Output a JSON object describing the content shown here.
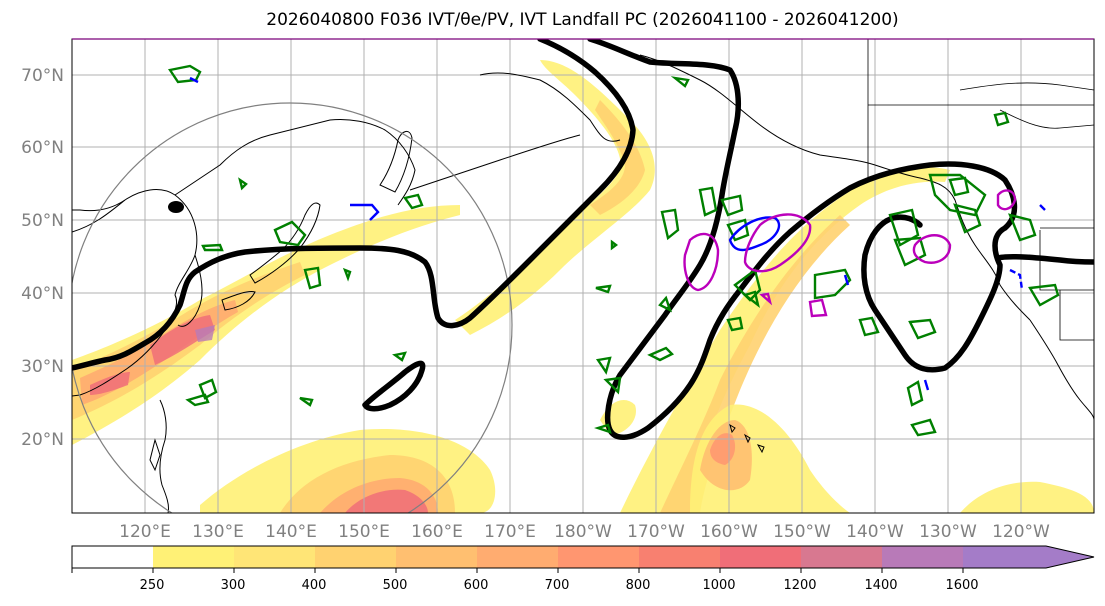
{
  "title": "2026040800 F036 IVT/θe/PV, IVT Landfall PC (2026041100 - 2026041200)",
  "map": {
    "lat_labels": [
      "70°N",
      "60°N",
      "50°N",
      "40°N",
      "30°N",
      "20°N"
    ],
    "lon_labels": [
      "120°E",
      "130°E",
      "140°E",
      "150°E",
      "160°E",
      "170°E",
      "180°W",
      "170°W",
      "160°W",
      "150°W",
      "140°W",
      "130°W",
      "120°W"
    ],
    "extent": {
      "lon_min": 110,
      "lon_max": 250,
      "lat_min": 10,
      "lat_max": 75
    },
    "colors": {
      "coastline": "#000000",
      "gridline": "#b0b0b0",
      "contour_thick": "#000000",
      "contour_green": "#008000",
      "contour_blue": "#0000ff",
      "contour_magenta": "#bb00bb",
      "circle": "#808080"
    }
  },
  "colorbar": {
    "levels": [
      "250",
      "300",
      "400",
      "500",
      "600",
      "700",
      "800",
      "1000",
      "1200",
      "1400",
      "1600"
    ],
    "colors": [
      "#ffffff",
      "#fff176",
      "#ffe576",
      "#ffd270",
      "#ffbf70",
      "#ffac70",
      "#ff9670",
      "#f88070",
      "#f06e78",
      "#d87890",
      "#b87ab8",
      "#a47cc8"
    ]
  }
}
